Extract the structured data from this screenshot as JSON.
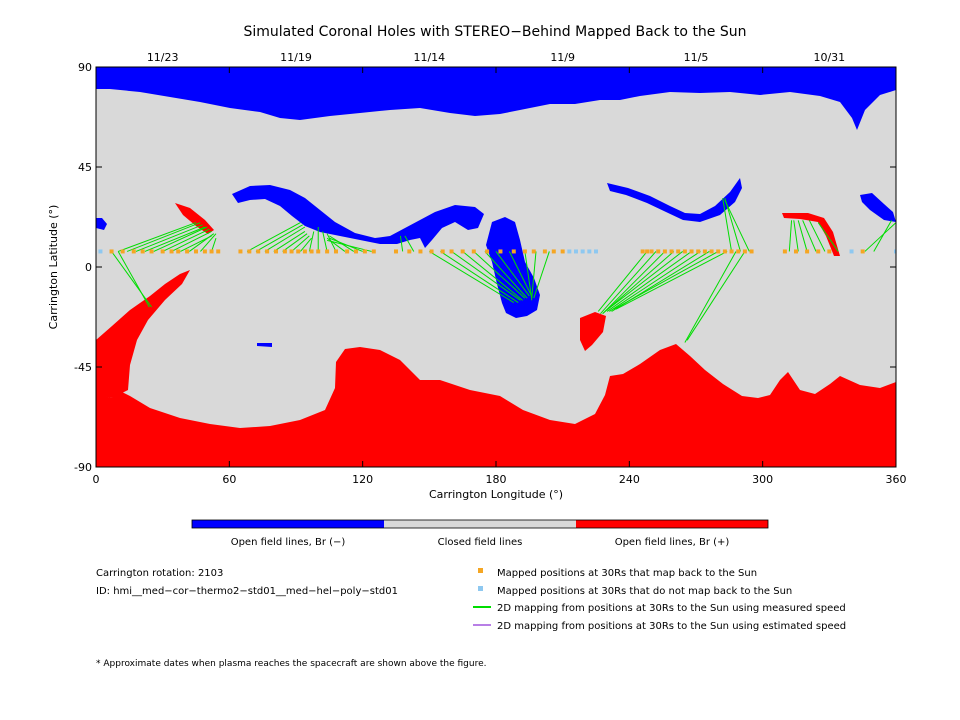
{
  "chart_data": {
    "type": "map",
    "title": "Simulated Coronal Holes with STEREO−Behind Mapped Back to the Sun",
    "xlabel": "Carrington Longitude (°)",
    "ylabel": "Carrington Latitude (°)",
    "xlim": [
      0,
      360
    ],
    "ylim": [
      -90,
      90
    ],
    "x_ticks": [
      0,
      60,
      120,
      180,
      240,
      300,
      360
    ],
    "y_ticks": [
      -90,
      -45,
      0,
      45,
      90
    ],
    "date_ticks": [
      {
        "label": "11/23",
        "lon": 30
      },
      {
        "label": "11/19",
        "lon": 90
      },
      {
        "label": "11/14",
        "lon": 150
      },
      {
        "label": "11/9",
        "lon": 210
      },
      {
        "label": "11/5",
        "lon": 270
      },
      {
        "label": "10/31",
        "lon": 330
      }
    ],
    "colors": {
      "open_negative": "#0000ff",
      "closed": "#d9d9d9",
      "open_positive": "#ff0000",
      "mapped": "#f5a623",
      "not_mapped": "#8ec8f0",
      "measured_speed": "#00dd00",
      "estimated_speed": "#b87fe6"
    },
    "colorbar_labels": [
      "Open field lines, Br (−)",
      "Closed field lines",
      "Open field lines, Br (+)"
    ],
    "mapped_lat": 7,
    "mapped_lon": [
      7,
      12,
      17,
      21,
      25,
      30,
      34,
      37,
      41,
      45,
      49,
      52,
      55,
      65,
      69,
      73,
      77,
      81,
      85,
      88,
      91,
      94,
      97,
      100,
      104,
      108,
      113,
      117,
      121,
      125,
      135,
      141,
      146,
      151,
      156,
      160,
      165,
      170,
      176,
      182,
      188,
      193,
      197,
      202,
      206,
      210,
      246,
      248,
      250,
      253,
      256,
      259,
      262,
      265,
      268,
      271,
      274,
      277,
      280,
      283,
      286,
      289,
      292,
      295,
      310,
      315,
      320,
      325,
      330,
      345
    ],
    "not_mapped_lon": [
      2,
      213,
      216,
      219,
      222,
      225,
      340,
      360
    ],
    "mapping_lines": [
      {
        "from": 7,
        "to": [
          25,
          -18
        ]
      },
      {
        "from": 10,
        "to": [
          24,
          -18
        ]
      },
      {
        "from": 10,
        "to": [
          45,
          20
        ]
      },
      {
        "from": 14,
        "to": [
          47,
          20
        ]
      },
      {
        "from": 18,
        "to": [
          48,
          19
        ]
      },
      {
        "from": 22,
        "to": [
          49,
          18
        ]
      },
      {
        "from": 26,
        "to": [
          50,
          18
        ]
      },
      {
        "from": 30,
        "to": [
          51,
          17
        ]
      },
      {
        "from": 34,
        "to": [
          52,
          16
        ]
      },
      {
        "from": 38,
        "to": [
          52,
          14
        ]
      },
      {
        "from": 42,
        "to": [
          53,
          15
        ]
      },
      {
        "from": 47,
        "to": [
          54,
          15
        ]
      },
      {
        "from": 52,
        "to": [
          54,
          13
        ]
      },
      {
        "from": 68,
        "to": [
          92,
          20
        ]
      },
      {
        "from": 72,
        "to": [
          93,
          19
        ]
      },
      {
        "from": 76,
        "to": [
          94,
          18
        ]
      },
      {
        "from": 80,
        "to": [
          94,
          16
        ]
      },
      {
        "from": 84,
        "to": [
          95,
          15
        ]
      },
      {
        "from": 88,
        "to": [
          96,
          14
        ]
      },
      {
        "from": 92,
        "to": [
          97,
          13
        ]
      },
      {
        "from": 96,
        "to": [
          98,
          16
        ]
      },
      {
        "from": 100,
        "to": [
          100,
          18
        ]
      },
      {
        "from": 104,
        "to": [
          102,
          16
        ]
      },
      {
        "from": 108,
        "to": [
          104,
          15
        ]
      },
      {
        "from": 112,
        "to": [
          104,
          13
        ]
      },
      {
        "from": 116,
        "to": [
          105,
          14
        ]
      },
      {
        "from": 120,
        "to": [
          105,
          13
        ]
      },
      {
        "from": 124,
        "to": [
          104,
          12
        ]
      },
      {
        "from": 138,
        "to": [
          137,
          14
        ]
      },
      {
        "from": 143,
        "to": [
          139,
          14
        ]
      },
      {
        "from": 150,
        "to": [
          188,
          -16
        ]
      },
      {
        "from": 155,
        "to": [
          190,
          -16
        ]
      },
      {
        "from": 160,
        "to": [
          191,
          -15
        ]
      },
      {
        "from": 165,
        "to": [
          192,
          -15
        ]
      },
      {
        "from": 170,
        "to": [
          193,
          -14
        ]
      },
      {
        "from": 175,
        "to": [
          194,
          -14
        ]
      },
      {
        "from": 180,
        "to": [
          195,
          -13
        ]
      },
      {
        "from": 186,
        "to": [
          196,
          -13
        ]
      },
      {
        "from": 193,
        "to": [
          196,
          -14
        ]
      },
      {
        "from": 198,
        "to": [
          196,
          -15
        ]
      },
      {
        "from": 204,
        "to": [
          197,
          -14
        ]
      },
      {
        "from": 248,
        "to": [
          226,
          -20
        ]
      },
      {
        "from": 252,
        "to": [
          227,
          -21
        ]
      },
      {
        "from": 256,
        "to": [
          228,
          -21
        ]
      },
      {
        "from": 260,
        "to": [
          228,
          -21
        ]
      },
      {
        "from": 264,
        "to": [
          229,
          -20
        ]
      },
      {
        "from": 268,
        "to": [
          230,
          -20
        ]
      },
      {
        "from": 272,
        "to": [
          231,
          -20
        ]
      },
      {
        "from": 276,
        "to": [
          232,
          -20
        ]
      },
      {
        "from": 280,
        "to": [
          233,
          -19
        ]
      },
      {
        "from": 284,
        "to": [
          234,
          -19
        ]
      },
      {
        "from": 288,
        "to": [
          265,
          -34
        ]
      },
      {
        "from": 292,
        "to": [
          266,
          -33
        ]
      },
      {
        "from": 286,
        "to": [
          282,
          31
        ]
      },
      {
        "from": 290,
        "to": [
          283,
          31
        ]
      },
      {
        "from": 294,
        "to": [
          283,
          30
        ]
      },
      {
        "from": 312,
        "to": [
          313,
          21
        ]
      },
      {
        "from": 316,
        "to": [
          314,
          21
        ]
      },
      {
        "from": 320,
        "to": [
          316,
          21
        ]
      },
      {
        "from": 324,
        "to": [
          318,
          21
        ]
      },
      {
        "from": 328,
        "to": [
          321,
          21
        ]
      },
      {
        "from": 334,
        "to": [
          325,
          20
        ]
      },
      {
        "from": 346,
        "to": [
          360,
          20
        ]
      },
      {
        "from": 350,
        "to": [
          358,
          21
        ]
      }
    ],
    "legend": {
      "mapped": "Mapped positions at 30Rs that map back to the Sun",
      "not_mapped": "Mapped positions at 30Rs that do not map back to the Sun",
      "measured": "2D mapping from positions at 30Rs to the Sun using measured speed",
      "estimated": "2D mapping from positions at 30Rs to the Sun using estimated speed"
    }
  },
  "info": {
    "rotation": "Carrington rotation: 2103",
    "id": "ID: hmi__med−cor−thermo2−std01__med−hel−poly−std01",
    "footnote": "* Approximate dates when plasma reaches the spacecraft are shown above the figure."
  }
}
